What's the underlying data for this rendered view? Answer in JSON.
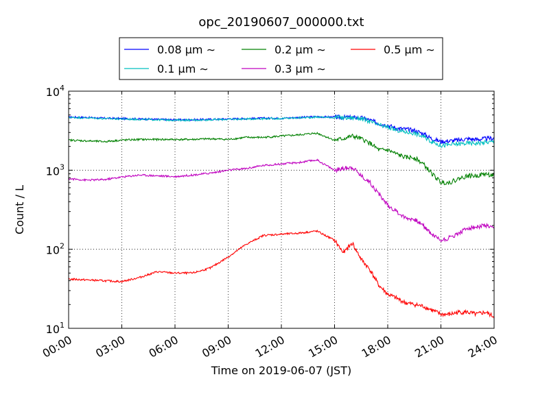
{
  "chart_data": {
    "type": "line",
    "title": "opc_20190607_000000.txt",
    "xlabel": "Time on 2019-06-07 (JST)",
    "ylabel": "Count / L",
    "xlim": [
      0,
      24
    ],
    "ylim": [
      10,
      10000
    ],
    "yscale": "log",
    "grid": true,
    "legend_position": "top-center",
    "x_tick_labels": [
      "00:00",
      "03:00",
      "06:00",
      "09:00",
      "12:00",
      "15:00",
      "18:00",
      "21:00",
      "24:00"
    ],
    "y_tick_labels": [
      {
        "base": "10",
        "exp": "1"
      },
      {
        "base": "10",
        "exp": "2"
      },
      {
        "base": "10",
        "exp": "3"
      },
      {
        "base": "10",
        "exp": "4"
      }
    ],
    "x": [
      0,
      1,
      2,
      3,
      4,
      5,
      6,
      7,
      8,
      9,
      10,
      11,
      12,
      13,
      14,
      15,
      15.5,
      16,
      16.5,
      17,
      17.5,
      18,
      18.5,
      19,
      19.5,
      20,
      20.5,
      21,
      21.5,
      22,
      22.5,
      23,
      23.5,
      24
    ],
    "series": [
      {
        "name": "0.08 μm ∼",
        "color": "#0000ff",
        "values": [
          4700,
          4650,
          4550,
          4500,
          4450,
          4400,
          4350,
          4350,
          4400,
          4450,
          4500,
          4550,
          4550,
          4650,
          4750,
          4700,
          4650,
          4650,
          4600,
          4300,
          3900,
          3700,
          3400,
          3300,
          3200,
          2900,
          2500,
          2300,
          2350,
          2400,
          2500,
          2450,
          2500,
          2550
        ]
      },
      {
        "name": "0.1 μm ∼",
        "color": "#00bfbf",
        "values": [
          4650,
          4600,
          4500,
          4450,
          4400,
          4350,
          4300,
          4300,
          4350,
          4400,
          4450,
          4500,
          4500,
          4600,
          4700,
          4650,
          4600,
          4600,
          4500,
          4100,
          3700,
          3500,
          3200,
          3050,
          2950,
          2650,
          2300,
          2050,
          2100,
          2150,
          2200,
          2200,
          2250,
          2300
        ]
      },
      {
        "name": "0.2 μm ∼",
        "color": "#008000",
        "values": [
          2400,
          2350,
          2300,
          2400,
          2450,
          2450,
          2450,
          2450,
          2500,
          2450,
          2600,
          2600,
          2700,
          2800,
          2950,
          2400,
          2500,
          2700,
          2500,
          2200,
          1800,
          1800,
          1600,
          1450,
          1450,
          1200,
          900,
          700,
          700,
          780,
          850,
          850,
          900,
          850
        ]
      },
      {
        "name": "0.3 μm ∼",
        "color": "#bf00bf",
        "values": [
          780,
          750,
          760,
          820,
          870,
          850,
          830,
          870,
          920,
          1000,
          1050,
          1150,
          1200,
          1250,
          1350,
          1000,
          1050,
          1100,
          850,
          700,
          500,
          360,
          300,
          250,
          240,
          200,
          155,
          130,
          140,
          160,
          185,
          190,
          200,
          180
        ]
      },
      {
        "name": "0.5 μm ∼",
        "color": "#ff0000",
        "values": [
          42,
          41,
          40,
          39,
          44,
          52,
          50,
          50,
          58,
          80,
          115,
          150,
          155,
          160,
          170,
          130,
          90,
          120,
          75,
          55,
          35,
          27,
          24,
          21,
          20,
          19,
          17,
          15,
          15,
          16,
          16,
          15,
          16,
          14
        ]
      }
    ]
  }
}
